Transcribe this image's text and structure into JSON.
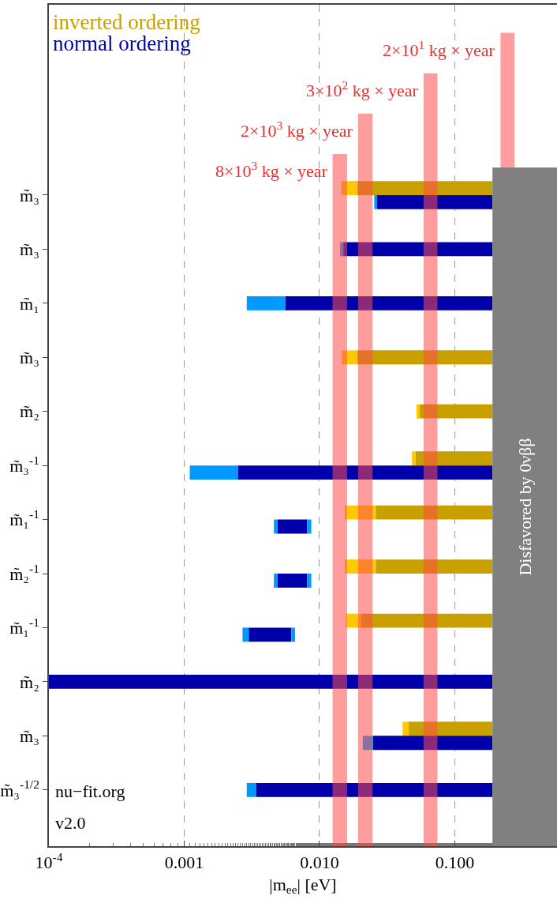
{
  "chart_data": {
    "type": "bar",
    "orientation": "horizontal",
    "categories": [
      "m̃₃",
      "m̃₃",
      "m̃₁",
      "m̃₃",
      "m̃₂",
      "m̃₃$^{-1}$",
      "m̃₁$^{-1}$",
      "m̃₂$^{-1}$",
      "m̃₁$^{-1}$",
      "m̃₂",
      "m̃₃",
      "m̃₃$^{-1/2}$"
    ],
    "series": [
      {
        "color": "#ffc800",
        "base": [
          0.0145,
          null,
          null,
          0.0146,
          0.0522,
          0.0483,
          0.0154,
          0.0154,
          0.0157,
          null,
          0.0412,
          null
        ],
        "values": [
          0.0045,
          null,
          null,
          0.0044,
          0.0029,
          0.003,
          0.0107,
          0.0107,
          0.0046,
          null,
          0.0043,
          null
        ]
      },
      {
        "name": "inverted ordering",
        "color": "#c8a000",
        "base": [
          0.019,
          null,
          null,
          0.019,
          0.0551,
          0.0513,
          0.0261,
          0.0261,
          0.0203,
          null,
          0.0455,
          null
        ],
        "values": [
          0.171,
          null,
          null,
          0.171,
          0.1349,
          0.1387,
          0.1639,
          0.1639,
          0.1697,
          null,
          0.1445,
          null
        ]
      },
      {
        "color": "#0099ff",
        "base": [
          0.0254,
          0.0142,
          0.0029,
          null,
          null,
          0.0011,
          0.0046,
          0.0046,
          0.0027,
          null,
          0.0209,
          0.0029
        ],
        "values": [
          0.0013,
          0.0008,
          0.0027,
          null,
          null,
          0.0014,
          0.0003,
          0.0003,
          0.0003,
          null,
          0.004,
          0.0005
        ]
      },
      {
        "name": "normal ordering",
        "color": "#0000aa",
        "base": [
          0.0267,
          0.015,
          0.0056,
          null,
          null,
          0.0025,
          0.0049,
          0.0049,
          0.003,
          0.0001,
          0.0249,
          0.0034
        ],
        "values": [
          0.1633,
          0.175,
          0.1844,
          null,
          null,
          0.1875,
          0.0032,
          0.0032,
          0.0032,
          0.1899,
          0.1651,
          0.1866
        ]
      },
      {
        "color": "#0099ff",
        "base": [
          null,
          null,
          null,
          null,
          null,
          null,
          0.0081,
          0.0081,
          0.0062,
          null,
          null,
          null
        ],
        "values": [
          null,
          null,
          null,
          null,
          null,
          null,
          0.0006,
          0.0006,
          0.0004,
          null,
          null,
          null
        ]
      }
    ],
    "xlabel": "|m$_{ee}$| [eV]",
    "log": "x",
    "xlim": [
      0.0001,
      0.57
    ],
    "xticks": [
      {
        "value": 0.0001,
        "label": "10$^{-4}$"
      },
      0.001,
      {
        "value": 0.01,
        "label": "0.010"
      },
      {
        "value": 0.1,
        "label": "0.100"
      }
    ],
    "grid": "x",
    "legend": "top left",
    "bands": [
      {
        "axis": "x",
        "from": 0.0125,
        "to": 0.016,
        "label": "8×10$^{3}$ kg × year",
        "color": "#ff4d4d"
      },
      {
        "axis": "x",
        "from": 0.0193,
        "to": 0.0247,
        "label": "2×10$^{3}$ kg × year",
        "color": "#ff4d4d"
      },
      {
        "axis": "x",
        "from": 0.0588,
        "to": 0.0745,
        "label": "3×10$^{2}$ kg × year",
        "color": "#ff4d4d"
      },
      {
        "axis": "x",
        "from": 0.218,
        "to": 0.277,
        "label": "2×10$^{1}$ kg × year",
        "color": "#ff4d4d"
      },
      {
        "axis": "x",
        "from": 0.19,
        "to": 0.57,
        "label": "Disfavored by 0νββ",
        "color": "#808080"
      }
    ],
    "annotations": [
      "nu−fit.org",
      "v2.0"
    ]
  }
}
